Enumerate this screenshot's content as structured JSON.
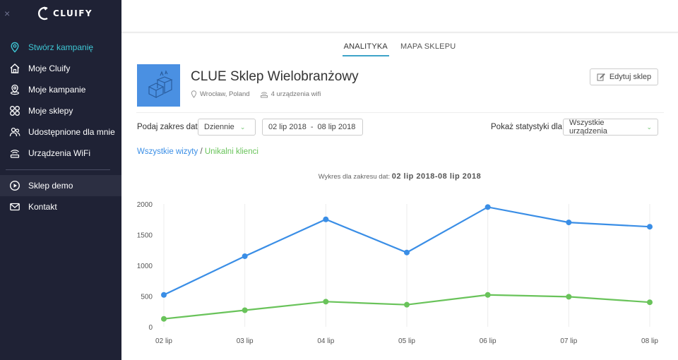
{
  "sidebar": {
    "close": "×",
    "logo_text": "CLUIFY",
    "items": [
      {
        "label": "Stwórz kampanię",
        "icon": "map-pin-icon"
      },
      {
        "label": "Moje Cluify",
        "icon": "home-icon"
      },
      {
        "label": "Moje kampanie",
        "icon": "location-icon"
      },
      {
        "label": "Moje sklepy",
        "icon": "grid-icon"
      },
      {
        "label": "Udostępnione dla mnie",
        "icon": "users-icon"
      },
      {
        "label": "Urządzenia WiFi",
        "icon": "wifi-router-icon"
      },
      {
        "label": "Sklep demo",
        "icon": "play-circle-icon"
      },
      {
        "label": "Kontakt",
        "icon": "mail-icon"
      }
    ]
  },
  "tabs": [
    "ANALITYKA",
    "MAPA SKLEPU"
  ],
  "store": {
    "title": "CLUE Sklep Wielobranżowy",
    "location": "Wrocław, Poland",
    "devices": "4 urządzenia wifi",
    "edit_label": "Edytuj sklep"
  },
  "filters": {
    "range_label": "Podaj zakres dat",
    "period": "Dziennie",
    "date_from": "02 lip 2018",
    "date_sep": "-",
    "date_to": "08 lip 2018",
    "stats_label": "Pokaż statystyki dla",
    "devices_select": "Wszystkie urządzenia"
  },
  "legend": {
    "visits": "Wszystkie wizyty",
    "slash": " / ",
    "unique": "Unikalni klienci"
  },
  "chart_title": {
    "prefix": "Wykres dla zakresu dat:",
    "range": "02 lip 2018-08 lip 2018"
  },
  "colors": {
    "visits": "#3a8ee6",
    "unique": "#69c35a",
    "sidebar": "#1f2235",
    "accent": "#3ec7d4"
  },
  "chart_data": {
    "type": "line",
    "categories": [
      "02 lip",
      "03 lip",
      "04 lip",
      "05 lip",
      "06 lip",
      "07 lip",
      "08 lip"
    ],
    "series": [
      {
        "name": "Wszystkie wizyty",
        "values": [
          520,
          1150,
          1750,
          1210,
          1950,
          1700,
          1630
        ]
      },
      {
        "name": "Unikalni klienci",
        "values": [
          130,
          270,
          410,
          360,
          520,
          490,
          400
        ]
      }
    ],
    "yticks": [
      0,
      500,
      1000,
      1500,
      2000
    ],
    "ylim": [
      0,
      2000
    ],
    "grid": true
  }
}
